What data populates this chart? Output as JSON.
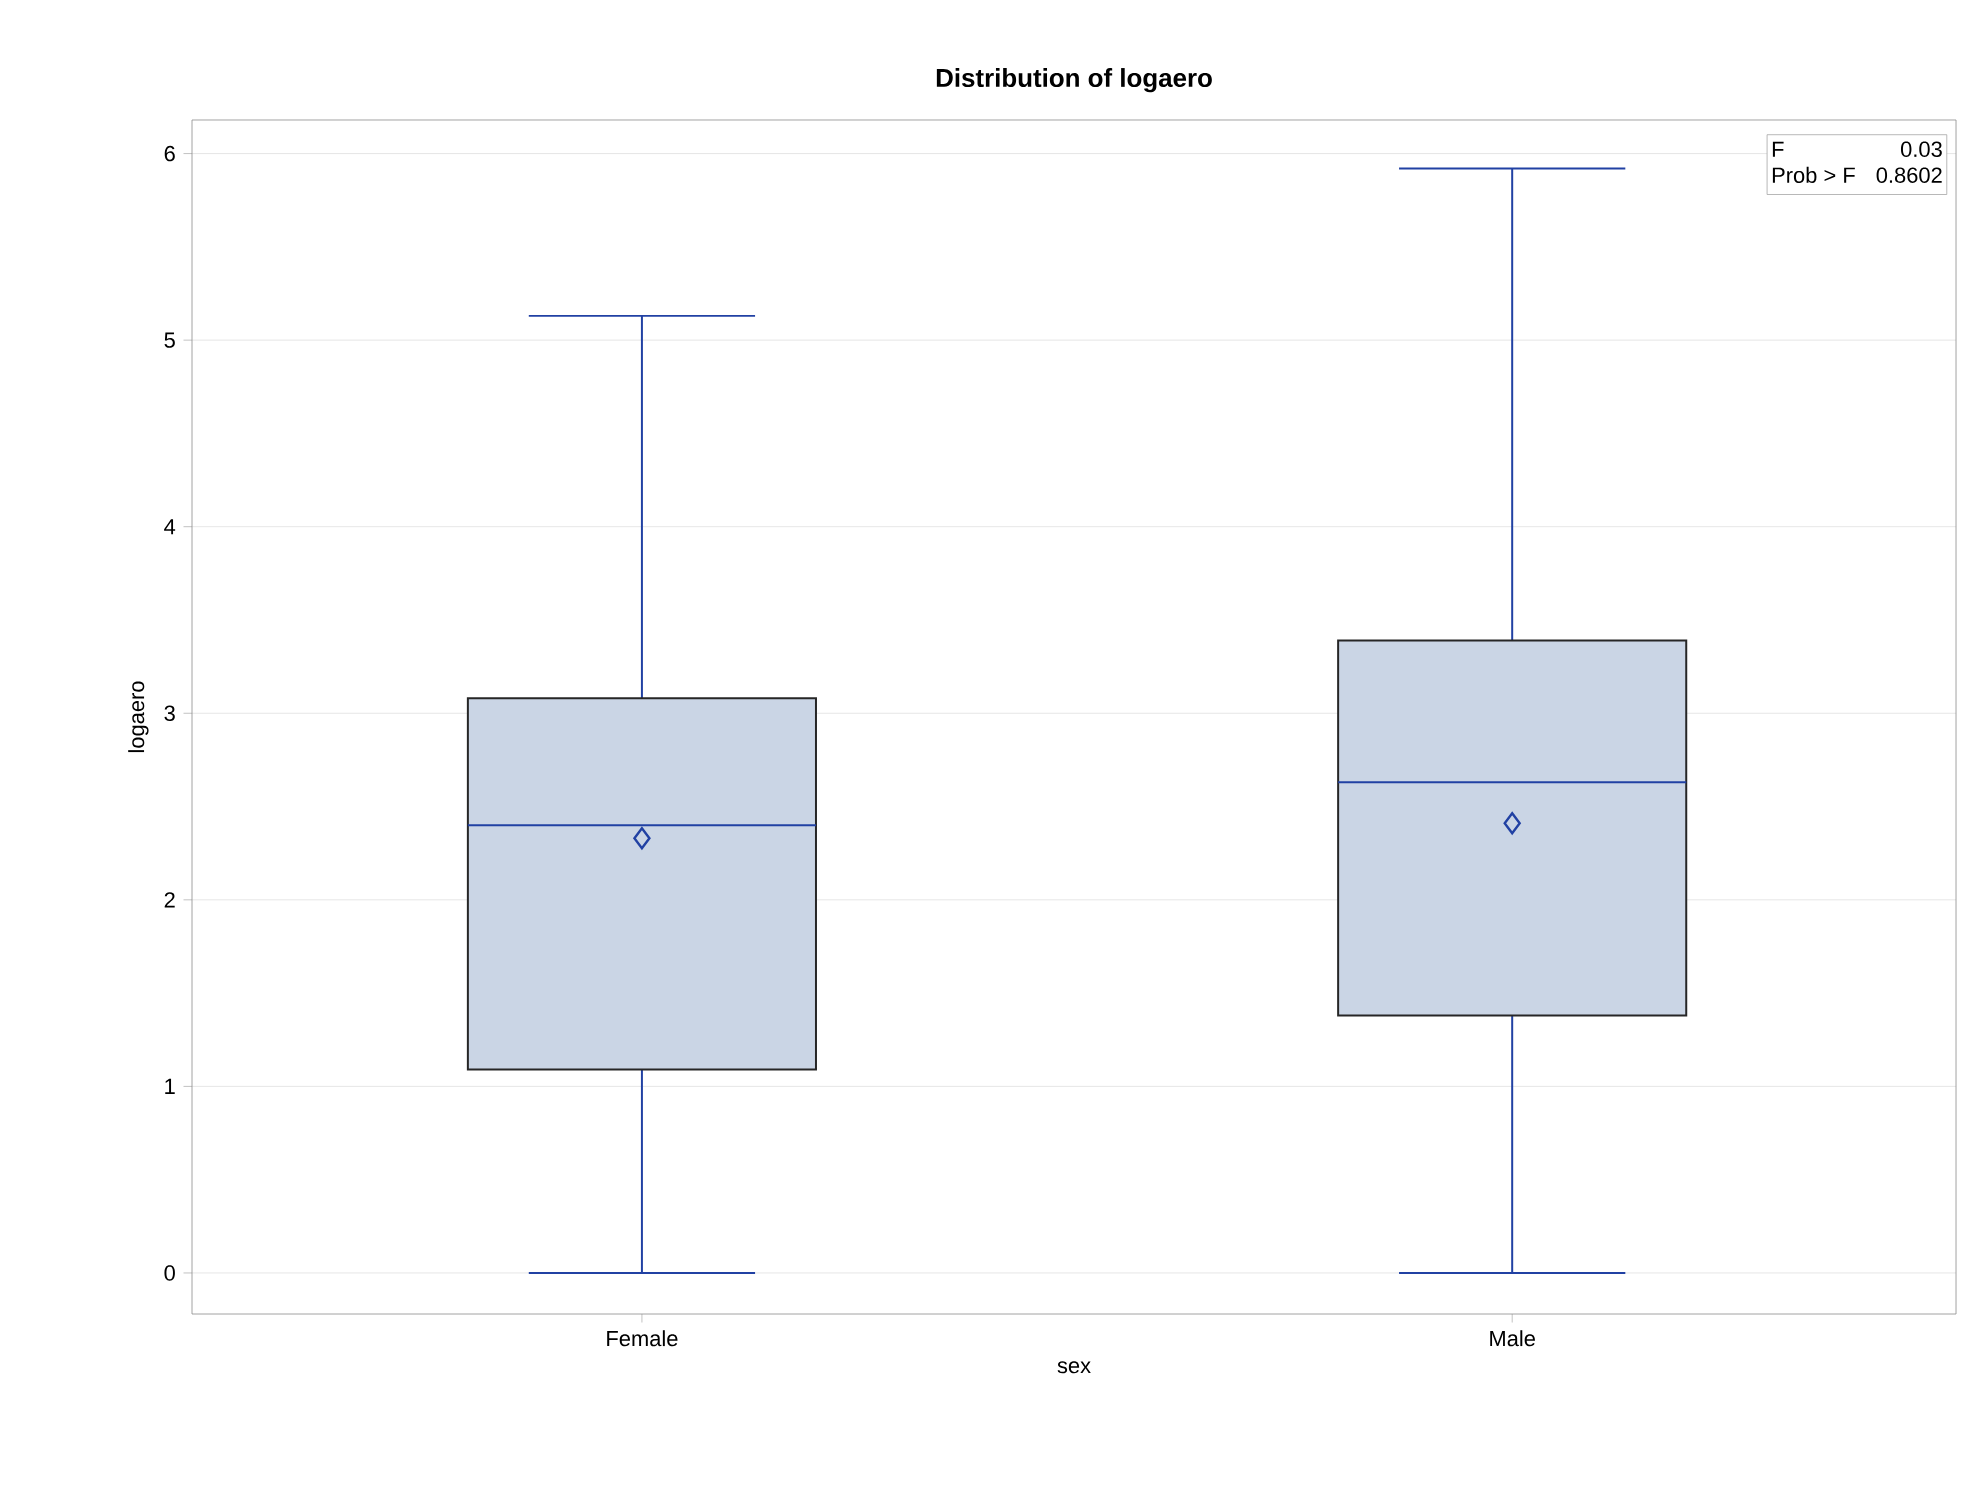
{
  "chart_data": {
    "type": "box",
    "title": "Distribution of logaero",
    "xlabel": "sex",
    "ylabel": "logaero",
    "categories": [
      "Female",
      "Male"
    ],
    "series": [
      {
        "color": "#2141a3",
        "colors": [
          "#cad5e5",
          "#cad5e5"
        ],
        "boxes": [
          {
            "low": 0,
            "q1": 1.09,
            "median": 2.4,
            "q3": 3.08,
            "high": 5.13,
            "mean": 2.33
          },
          {
            "low": 0,
            "q1": 1.38,
            "median": 2.63,
            "q3": 3.39,
            "high": 5.92,
            "mean": 2.41
          }
        ]
      }
    ],
    "ylim": [
      -0.22,
      6.18
    ],
    "yticks": [
      0,
      1,
      2,
      3,
      4,
      5,
      6
    ],
    "grid": "y",
    "marker": "diamond",
    "annotations": [
      "F",
      "0.03",
      "Prob > F",
      "0.8602"
    ]
  }
}
